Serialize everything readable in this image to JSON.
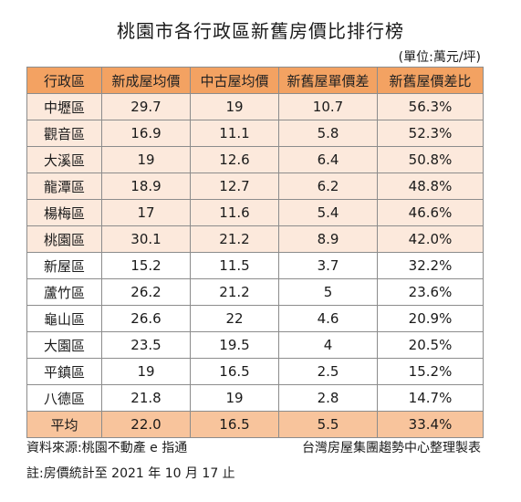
{
  "title": "桃園市各行政區新舊房價比排行榜",
  "unit": "(單位:萬元/坪)",
  "table": {
    "headers": [
      "行政區",
      "新成屋均價",
      "中古屋均價",
      "新舊屋單價差",
      "新舊屋價差比"
    ],
    "rows": [
      {
        "district": "中壢區",
        "new_price": "29.7",
        "used_price": "19",
        "diff": "10.7",
        "ratio": "56.3%",
        "highlight": true
      },
      {
        "district": "觀音區",
        "new_price": "16.9",
        "used_price": "11.1",
        "diff": "5.8",
        "ratio": "52.3%",
        "highlight": true
      },
      {
        "district": "大溪區",
        "new_price": "19",
        "used_price": "12.6",
        "diff": "6.4",
        "ratio": "50.8%",
        "highlight": true
      },
      {
        "district": "龍潭區",
        "new_price": "18.9",
        "used_price": "12.7",
        "diff": "6.2",
        "ratio": "48.8%",
        "highlight": true
      },
      {
        "district": "楊梅區",
        "new_price": "17",
        "used_price": "11.6",
        "diff": "5.4",
        "ratio": "46.6%",
        "highlight": true
      },
      {
        "district": "桃園區",
        "new_price": "30.1",
        "used_price": "21.2",
        "diff": "8.9",
        "ratio": "42.0%",
        "highlight": true
      },
      {
        "district": "新屋區",
        "new_price": "15.2",
        "used_price": "11.5",
        "diff": "3.7",
        "ratio": "32.2%",
        "highlight": false
      },
      {
        "district": "蘆竹區",
        "new_price": "26.2",
        "used_price": "21.2",
        "diff": "5",
        "ratio": "23.6%",
        "highlight": false
      },
      {
        "district": "龜山區",
        "new_price": "26.6",
        "used_price": "22",
        "diff": "4.6",
        "ratio": "20.9%",
        "highlight": false
      },
      {
        "district": "大園區",
        "new_price": "23.5",
        "used_price": "19.5",
        "diff": "4",
        "ratio": "20.5%",
        "highlight": false
      },
      {
        "district": "平鎮區",
        "new_price": "19",
        "used_price": "16.5",
        "diff": "2.5",
        "ratio": "15.2%",
        "highlight": false
      },
      {
        "district": "八德區",
        "new_price": "21.8",
        "used_price": "19",
        "diff": "2.8",
        "ratio": "14.7%",
        "highlight": false
      }
    ],
    "average": {
      "district": "平均",
      "new_price": "22.0",
      "used_price": "16.5",
      "diff": "5.5",
      "ratio": "33.4%"
    }
  },
  "footer": {
    "source": "資料來源:桃園不動產 e 指通",
    "maker": "台灣房屋集團趨勢中心整理製表",
    "note": "註:房價統計至 2021 年 10 月 17 止"
  },
  "colors": {
    "header_bg": "#f3a262",
    "highlight_bg": "#fce9dc",
    "average_bg": "#f8c49c"
  }
}
